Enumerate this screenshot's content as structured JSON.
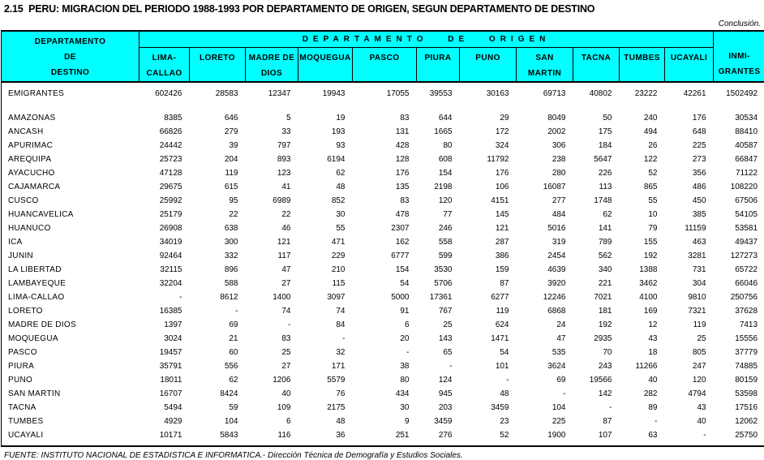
{
  "title": "2.15  PERU: MIGRACION DEL PERIODO 1988-1993 POR DEPARTAMENTO DE ORIGEN, SEGUN DEPARTAMENTO DE DESTINO",
  "conclusion_note": "Conclusión.",
  "colors": {
    "header_background": "#00ffff",
    "border": "#000000",
    "text": "#000000"
  },
  "table": {
    "destino_header": [
      "DEPARTAMENTO",
      "DE",
      "DESTINO"
    ],
    "origen_header": "DEPARTAMENTO DE ORIGEN",
    "inmigrantes_header": [
      "INMI-",
      "GRANTES"
    ],
    "origin_columns": [
      {
        "id": "lima-callao",
        "lines": [
          "LIMA-",
          "CALLAO"
        ]
      },
      {
        "id": "loreto",
        "lines": [
          "LORETO"
        ]
      },
      {
        "id": "madre-de-dios",
        "lines": [
          "MADRE DE",
          "DIOS"
        ]
      },
      {
        "id": "moquegua",
        "lines": [
          "MOQUEGUA"
        ]
      },
      {
        "id": "pasco",
        "lines": [
          "PASCO"
        ]
      },
      {
        "id": "piura",
        "lines": [
          "PIURA"
        ]
      },
      {
        "id": "puno",
        "lines": [
          "PUNO"
        ]
      },
      {
        "id": "san-martin",
        "lines": [
          "SAN",
          "MARTIN"
        ]
      },
      {
        "id": "tacna",
        "lines": [
          "TACNA"
        ]
      },
      {
        "id": "tumbes",
        "lines": [
          "TUMBES"
        ]
      },
      {
        "id": "ucayali",
        "lines": [
          "UCAYALI"
        ]
      }
    ],
    "rows": [
      {
        "label": "EMIGRANTES",
        "values": [
          "602426",
          "28583",
          "12347",
          "19943",
          "17055",
          "39553",
          "30163",
          "69713",
          "40802",
          "23222",
          "42261",
          "1502492"
        ]
      },
      {
        "label": "AMAZONAS",
        "values": [
          "8385",
          "646",
          "5",
          "19",
          "83",
          "644",
          "29",
          "8049",
          "50",
          "240",
          "176",
          "30534"
        ]
      },
      {
        "label": "ANCASH",
        "values": [
          "66826",
          "279",
          "33",
          "193",
          "131",
          "1665",
          "172",
          "2002",
          "175",
          "494",
          "648",
          "88410"
        ]
      },
      {
        "label": "APURIMAC",
        "values": [
          "24442",
          "39",
          "797",
          "93",
          "428",
          "80",
          "324",
          "306",
          "184",
          "26",
          "225",
          "40587"
        ]
      },
      {
        "label": "AREQUIPA",
        "values": [
          "25723",
          "204",
          "893",
          "6194",
          "128",
          "608",
          "11792",
          "238",
          "5647",
          "122",
          "273",
          "66847"
        ]
      },
      {
        "label": "AYACUCHO",
        "values": [
          "47128",
          "119",
          "123",
          "62",
          "176",
          "154",
          "176",
          "280",
          "226",
          "52",
          "356",
          "71122"
        ]
      },
      {
        "label": "CAJAMARCA",
        "values": [
          "29675",
          "615",
          "41",
          "48",
          "135",
          "2198",
          "106",
          "16087",
          "113",
          "865",
          "486",
          "108220"
        ]
      },
      {
        "label": "CUSCO",
        "values": [
          "25992",
          "95",
          "6989",
          "852",
          "83",
          "120",
          "4151",
          "277",
          "1748",
          "55",
          "450",
          "67506"
        ]
      },
      {
        "label": "HUANCAVELICA",
        "values": [
          "25179",
          "22",
          "22",
          "30",
          "478",
          "77",
          "145",
          "484",
          "62",
          "10",
          "385",
          "54105"
        ]
      },
      {
        "label": "HUANUCO",
        "values": [
          "26908",
          "638",
          "46",
          "55",
          "2307",
          "246",
          "121",
          "5016",
          "141",
          "79",
          "11159",
          "53581"
        ]
      },
      {
        "label": "ICA",
        "values": [
          "34019",
          "300",
          "121",
          "471",
          "162",
          "558",
          "287",
          "319",
          "789",
          "155",
          "463",
          "49437"
        ]
      },
      {
        "label": "JUNIN",
        "values": [
          "92464",
          "332",
          "117",
          "229",
          "6777",
          "599",
          "386",
          "2454",
          "562",
          "192",
          "3281",
          "127273"
        ]
      },
      {
        "label": "LA LIBERTAD",
        "values": [
          "32115",
          "896",
          "47",
          "210",
          "154",
          "3530",
          "159",
          "4639",
          "340",
          "1388",
          "731",
          "65722"
        ]
      },
      {
        "label": "LAMBAYEQUE",
        "values": [
          "32204",
          "588",
          "27",
          "115",
          "54",
          "5706",
          "87",
          "3920",
          "221",
          "3462",
          "304",
          "66046"
        ]
      },
      {
        "label": "LIMA-CALLAO",
        "values": [
          "-",
          "8612",
          "1400",
          "3097",
          "5000",
          "17361",
          "6277",
          "12246",
          "7021",
          "4100",
          "9810",
          "250756"
        ]
      },
      {
        "label": "LORETO",
        "values": [
          "16385",
          "-",
          "74",
          "74",
          "91",
          "767",
          "119",
          "6868",
          "181",
          "169",
          "7321",
          "37628"
        ]
      },
      {
        "label": "MADRE DE DIOS",
        "values": [
          "1397",
          "69",
          "-",
          "84",
          "6",
          "25",
          "624",
          "24",
          "192",
          "12",
          "119",
          "7413"
        ]
      },
      {
        "label": "MOQUEGUA",
        "values": [
          "3024",
          "21",
          "83",
          "-",
          "20",
          "143",
          "1471",
          "47",
          "2935",
          "43",
          "25",
          "15556"
        ]
      },
      {
        "label": "PASCO",
        "values": [
          "19457",
          "60",
          "25",
          "32",
          "-",
          "65",
          "54",
          "535",
          "70",
          "18",
          "805",
          "37779"
        ]
      },
      {
        "label": "PIURA",
        "values": [
          "35791",
          "556",
          "27",
          "171",
          "38",
          "-",
          "101",
          "3624",
          "243",
          "11266",
          "247",
          "74885"
        ]
      },
      {
        "label": "PUNO",
        "values": [
          "18011",
          "62",
          "1206",
          "5579",
          "80",
          "124",
          "-",
          "69",
          "19566",
          "40",
          "120",
          "80159"
        ]
      },
      {
        "label": "SAN MARTIN",
        "values": [
          "16707",
          "8424",
          "40",
          "76",
          "434",
          "945",
          "48",
          "-",
          "142",
          "282",
          "4794",
          "53598"
        ]
      },
      {
        "label": "TACNA",
        "values": [
          "5494",
          "59",
          "109",
          "2175",
          "30",
          "203",
          "3459",
          "104",
          "-",
          "89",
          "43",
          "17516"
        ]
      },
      {
        "label": "TUMBES",
        "values": [
          "4929",
          "104",
          "6",
          "48",
          "9",
          "3459",
          "23",
          "225",
          "87",
          "-",
          "40",
          "12062"
        ]
      },
      {
        "label": "UCAYALI",
        "values": [
          "10171",
          "5843",
          "116",
          "36",
          "251",
          "276",
          "52",
          "1900",
          "107",
          "63",
          "-",
          "25750"
        ]
      }
    ]
  },
  "footer": {
    "source": "FUENTE: INSTITUTO NACIONAL DE ESTADISTICA E INFORMATICA.- Dirección Técnica de Demografía y Estudios Sociales."
  }
}
